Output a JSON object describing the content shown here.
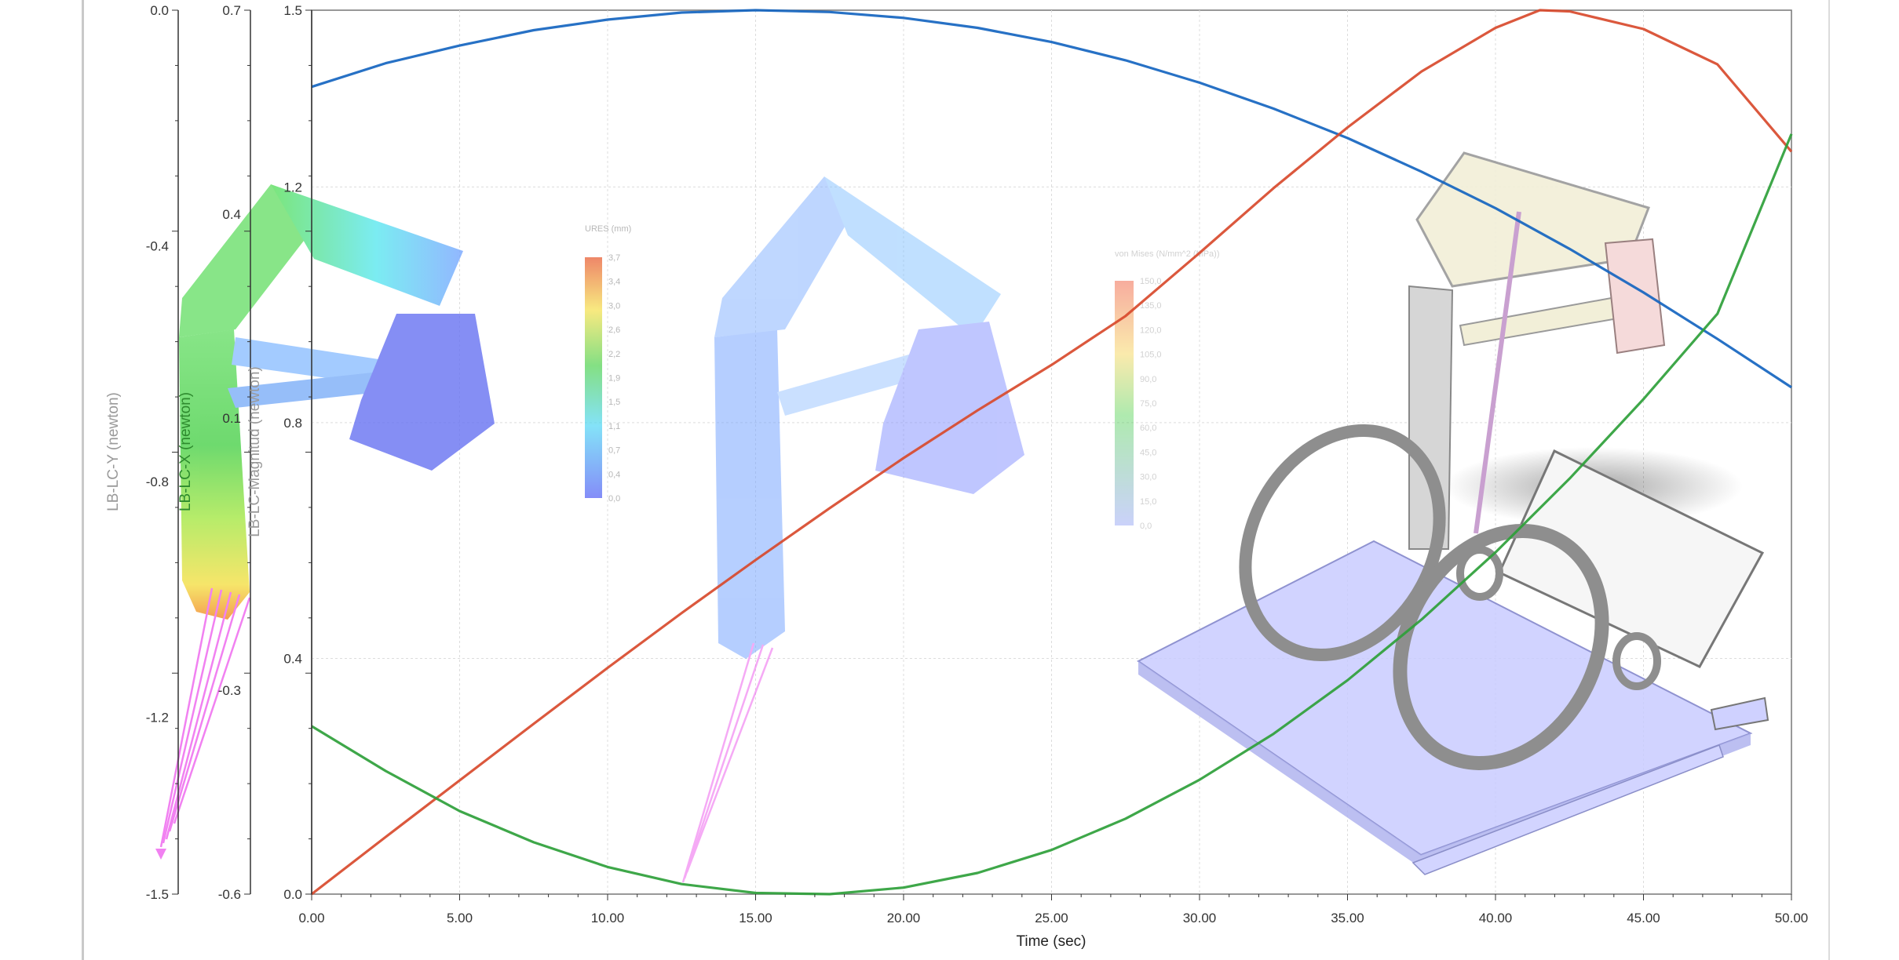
{
  "chart_data": {
    "type": "line",
    "x": {
      "label": "Time (sec)",
      "range": [
        0,
        50
      ],
      "ticks": [
        "0.00",
        "5.00",
        "10.00",
        "15.00",
        "20.00",
        "25.00",
        "30.00",
        "35.00",
        "40.00",
        "45.00",
        "50.00"
      ]
    },
    "y_axes": [
      {
        "id": "y",
        "label": "LB-LC-Y (newton)",
        "range": [
          -1.5,
          0.0
        ],
        "ticks": [
          "0.0",
          "-0.4",
          "-0.8",
          "-1.2",
          "-1.5"
        ],
        "color": "#9a9a9a"
      },
      {
        "id": "x",
        "label": "LB-LC-X (newton)",
        "range": [
          -0.6,
          0.7
        ],
        "ticks": [
          "0.7",
          "0.4",
          "0.1",
          "-0.3",
          "-0.6"
        ],
        "color": "#2e8b2e"
      },
      {
        "id": "mag",
        "label": "LB-LC-Magnitud (newton)",
        "range": [
          0.0,
          1.5
        ],
        "ticks": [
          "1.5",
          "1.2",
          "0.8",
          "0.4",
          "0.0"
        ],
        "color": "#9a9a9a"
      }
    ],
    "series": [
      {
        "axis": "mag",
        "color": "#1565c0",
        "x": [
          0,
          2.5,
          5,
          7.5,
          10,
          12.5,
          15,
          17.5,
          20,
          22.5,
          25,
          27.5,
          30,
          32.5,
          35,
          37.5,
          40,
          42.5,
          45,
          47.5,
          50
        ],
        "y": [
          1.37,
          1.41,
          1.44,
          1.466,
          1.484,
          1.496,
          1.5,
          1.497,
          1.487,
          1.47,
          1.446,
          1.415,
          1.377,
          1.333,
          1.283,
          1.226,
          1.164,
          1.095,
          1.021,
          0.942,
          0.86
        ]
      },
      {
        "axis": "mag",
        "color": "#d84a2c",
        "x": [
          0,
          2.5,
          5,
          7.5,
          10,
          12.5,
          15,
          17.5,
          20,
          22.5,
          25,
          27.5,
          30,
          32.5,
          35,
          37.5,
          40,
          41.5,
          42.5,
          45,
          47.5,
          50
        ],
        "y": [
          0,
          0.097,
          0.193,
          0.289,
          0.384,
          0.477,
          0.567,
          0.655,
          0.74,
          0.821,
          0.898,
          0.981,
          1.088,
          1.198,
          1.301,
          1.396,
          1.47,
          1.5,
          1.498,
          1.468,
          1.408,
          1.26
        ]
      },
      {
        "axis": "mag",
        "color": "#2ea03a",
        "x": [
          0,
          2.5,
          5,
          7.5,
          10,
          12.5,
          15,
          17.5,
          20,
          22.5,
          25,
          27.5,
          30,
          32.5,
          35,
          37.5,
          40,
          42.5,
          45,
          47.5,
          50
        ],
        "y": [
          0.285,
          0.209,
          0.141,
          0.088,
          0.046,
          0.017,
          0.002,
          0,
          0.011,
          0.036,
          0.075,
          0.128,
          0.194,
          0.272,
          0.363,
          0.466,
          0.58,
          0.705,
          0.84,
          0.985,
          1.29
        ]
      }
    ],
    "annotations": {
      "ures_legend": {
        "title": "URES (mm)",
        "values": [
          "3,7",
          "3,4",
          "3,0",
          "2,6",
          "2,2",
          "1,9",
          "1,5",
          "1,1",
          "0,7",
          "0,4",
          "0,0"
        ]
      },
      "vm_legend": {
        "title": "von Mises (N/mm^2 (MPa))",
        "values": [
          "150,0",
          "135,0",
          "120,0",
          "105,0",
          "90,0",
          "75,0",
          "60,0",
          "45,0",
          "30,0",
          "15,0",
          "0,0"
        ]
      }
    },
    "grid": true,
    "title": ""
  }
}
